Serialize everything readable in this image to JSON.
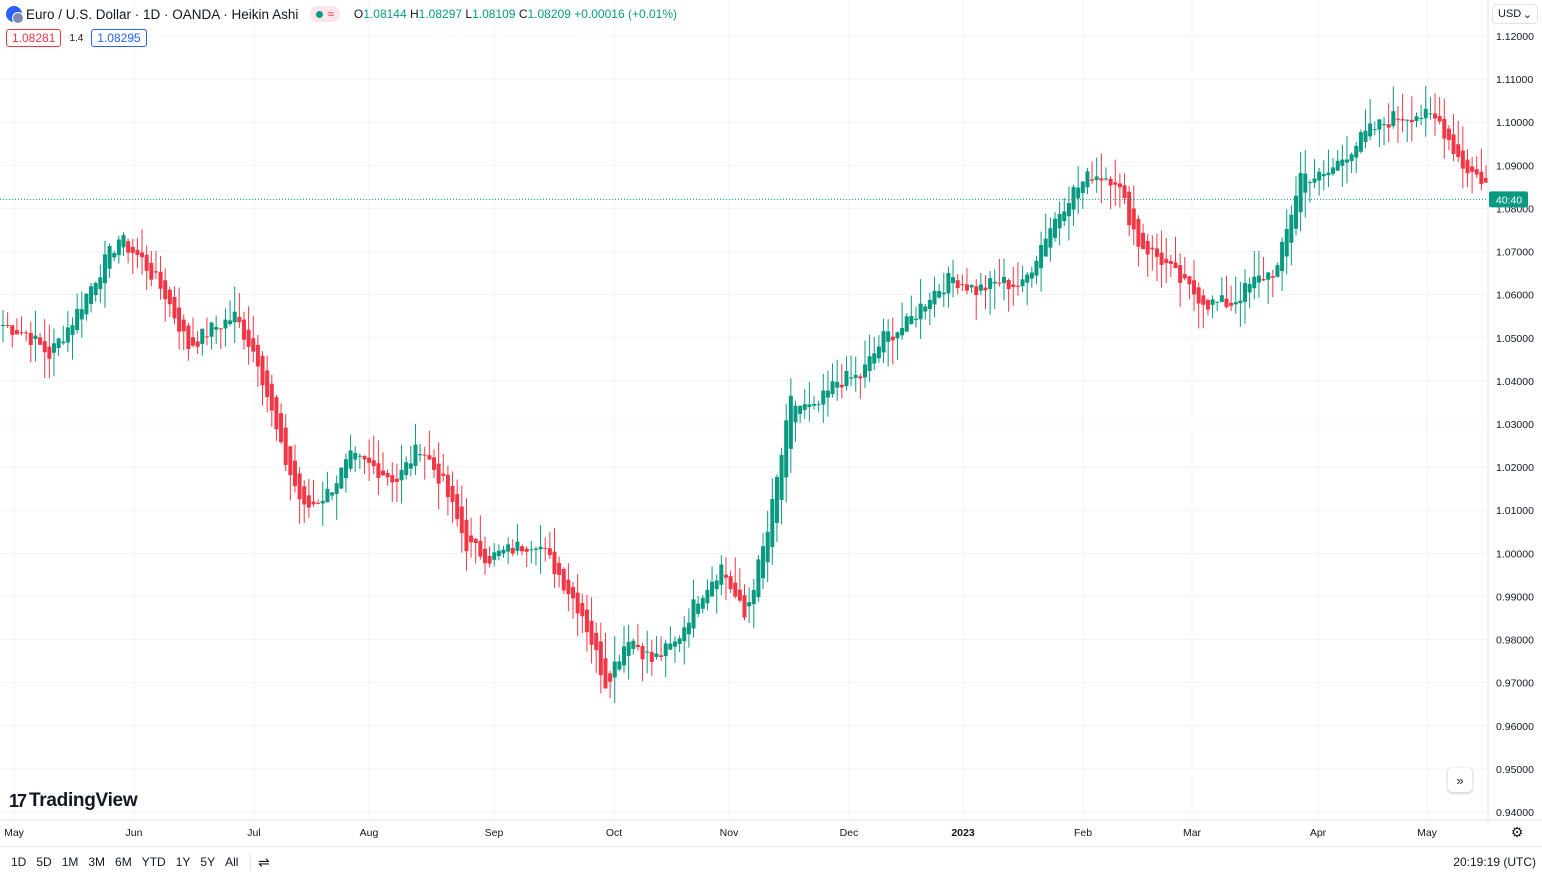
{
  "header": {
    "title": "Euro / U.S. Dollar · 1D · OANDA · Heikin Ashi",
    "approx_symbol": "≈",
    "open_label": "O",
    "open": "1.08144",
    "high_label": "H",
    "high": "1.08297",
    "low_label": "L",
    "low": "1.08109",
    "close_label": "C",
    "close": "1.08209",
    "change": "+0.00016 (+0.01%)"
  },
  "quote": {
    "bid": "1.08281",
    "spread": "1.4",
    "ask": "1.08295"
  },
  "currency_selector": {
    "value": "USD"
  },
  "price_tag": {
    "value": "40:40",
    "price": 1.0821
  },
  "logo_text": "TradingView",
  "bottom_bar": {
    "ranges": [
      "1D",
      "5D",
      "1M",
      "3M",
      "6M",
      "YTD",
      "1Y",
      "5Y",
      "All"
    ],
    "clock": "20:19:19 (UTC)"
  },
  "icons": {
    "scroll": "chevrons-right-icon",
    "settings": "gear-icon",
    "calendar": "calendar-range-icon"
  },
  "colors": {
    "up": "#089981",
    "down": "#f23645",
    "accent": "#2962ff"
  },
  "chart_data": {
    "type": "candlestick",
    "style": "Heikin Ashi",
    "ylim": [
      0.94,
      1.12
    ],
    "y_ticks": [
      "1.12000",
      "1.11000",
      "1.10000",
      "1.09000",
      "1.08000",
      "1.07000",
      "1.06000",
      "1.05000",
      "1.04000",
      "1.03000",
      "1.02000",
      "1.01000",
      "1.00000",
      "0.99000",
      "0.98000",
      "0.97000",
      "0.96000",
      "0.95000",
      "0.94000"
    ],
    "x_ticks": [
      "May",
      "Jun",
      "Jul",
      "Aug",
      "Sep",
      "Oct",
      "Nov",
      "Dec",
      "2023",
      "Feb",
      "Mar",
      "Apr",
      "May"
    ],
    "grid": true,
    "closes_weekly": [
      1.053,
      1.051,
      1.046,
      1.054,
      1.064,
      1.073,
      1.068,
      1.06,
      1.048,
      1.052,
      1.055,
      1.045,
      1.024,
      1.01,
      1.014,
      1.022,
      1.02,
      1.017,
      1.025,
      1.016,
      1.002,
      0.999,
      1.001,
      1.003,
      0.995,
      0.986,
      0.97,
      0.981,
      0.975,
      0.979,
      0.99,
      0.997,
      0.985,
      1.005,
      1.035,
      1.033,
      1.04,
      1.041,
      1.05,
      1.053,
      1.06,
      1.064,
      1.061,
      1.063,
      1.062,
      1.074,
      1.083,
      1.088,
      1.087,
      1.072,
      1.068,
      1.062,
      1.058,
      1.058,
      1.063,
      1.066,
      1.088,
      1.087,
      1.093,
      1.098,
      1.101,
      1.102,
      1.1,
      1.09,
      1.086
    ]
  }
}
